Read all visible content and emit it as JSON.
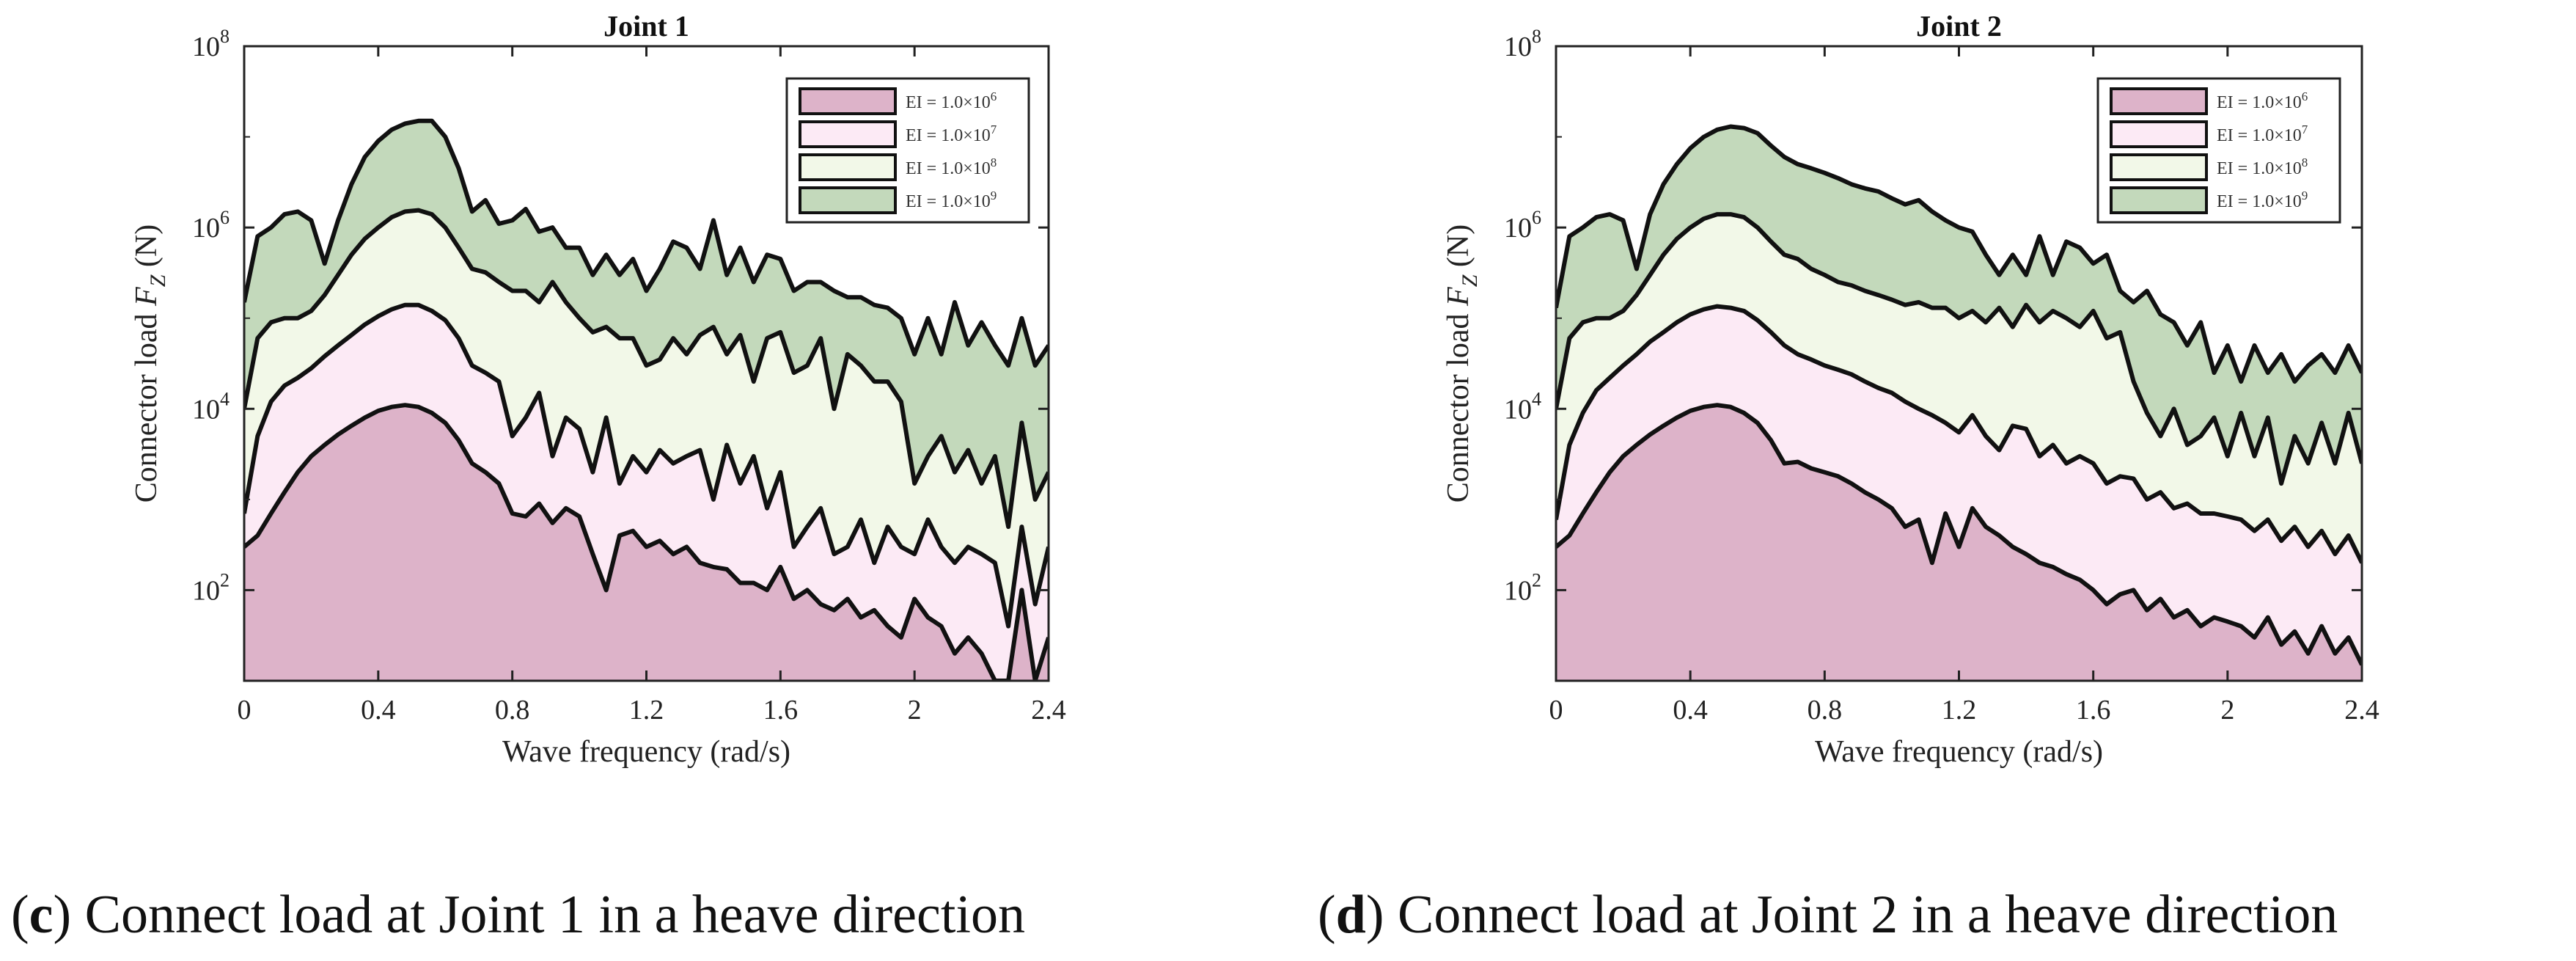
{
  "chart_data": [
    {
      "type": "area",
      "title": "Joint 1",
      "xlabel": "Wave frequency (rad/s)",
      "ylabel": "Connector load F_Z (N)",
      "ylabel_main": "Connector load ",
      "ylabel_var": "F",
      "ylabel_sub": "Z",
      "ylabel_unit": " (N)",
      "y_scale": "log",
      "ylim": [
        10,
        100000000
      ],
      "xlim": [
        0,
        2.4
      ],
      "x_ticks": [
        "0",
        "0.4",
        "0.8",
        "1.2",
        "1.6",
        "2",
        "2.4"
      ],
      "x_tick_values": [
        0,
        0.4,
        0.8,
        1.2,
        1.6,
        2,
        2.4
      ],
      "y_ticks": [
        {
          "value": 100,
          "base": "10",
          "exp": "2"
        },
        {
          "value": 10000,
          "base": "10",
          "exp": "4"
        },
        {
          "value": 1000000,
          "base": "10",
          "exp": "6"
        },
        {
          "value": 100000000,
          "base": "10",
          "exp": "8"
        }
      ],
      "legend_position": "top-right",
      "grid": false,
      "x": [
        0,
        0.04,
        0.08,
        0.12,
        0.16,
        0.2,
        0.24,
        0.28,
        0.32,
        0.36,
        0.4,
        0.44,
        0.48,
        0.52,
        0.56,
        0.6,
        0.64,
        0.68,
        0.72,
        0.76,
        0.8,
        0.84,
        0.88,
        0.92,
        0.96,
        1.0,
        1.04,
        1.08,
        1.12,
        1.16,
        1.2,
        1.24,
        1.28,
        1.32,
        1.36,
        1.4,
        1.44,
        1.48,
        1.52,
        1.56,
        1.6,
        1.64,
        1.68,
        1.72,
        1.76,
        1.8,
        1.84,
        1.88,
        1.92,
        1.96,
        2.0,
        2.04,
        2.08,
        2.12,
        2.16,
        2.2,
        2.24,
        2.28,
        2.32,
        2.36,
        2.4
      ],
      "series": [
        {
          "name": "EI = 1.0×10^6",
          "label_main": "EI = 1.0×10",
          "label_exp": "6",
          "color": "#ddb3c9",
          "values": [
            300,
            400,
            700,
            1200,
            2000,
            3000,
            4000,
            5200,
            6500,
            8000,
            9500,
            10500,
            11000,
            10500,
            9000,
            7000,
            4500,
            2500,
            2000,
            1500,
            700,
            650,
            900,
            550,
            800,
            650,
            250,
            100,
            400,
            450,
            300,
            350,
            250,
            300,
            200,
            180,
            170,
            120,
            120,
            100,
            180,
            80,
            100,
            70,
            60,
            80,
            50,
            60,
            40,
            30,
            80,
            50,
            40,
            20,
            30,
            20,
            10,
            6,
            100,
            8,
            30
          ]
        },
        {
          "name": "EI = 1.0×10^7",
          "label_main": "EI = 1.0×10",
          "label_exp": "7",
          "color": "#fceaf5",
          "values": [
            700,
            5000,
            12000,
            18000,
            22000,
            28000,
            38000,
            50000,
            65000,
            85000,
            105000,
            125000,
            140000,
            140000,
            120000,
            95000,
            60000,
            30000,
            25000,
            20000,
            5000,
            8000,
            15000,
            3000,
            8000,
            6000,
            2000,
            8000,
            1500,
            3000,
            2000,
            3500,
            2500,
            3000,
            3500,
            1000,
            4000,
            1500,
            3000,
            800,
            2000,
            300,
            500,
            800,
            250,
            300,
            600,
            200,
            500,
            300,
            250,
            600,
            300,
            200,
            300,
            250,
            200,
            40,
            500,
            70,
            300
          ]
        },
        {
          "name": "EI = 1.0×10^8",
          "label_main": "EI = 1.0×10",
          "label_exp": "8",
          "color": "#f2f8e8",
          "values": [
            10000,
            60000,
            90000,
            100000,
            100000,
            120000,
            180000,
            300000,
            500000,
            750000,
            1000000,
            1300000,
            1500000,
            1550000,
            1400000,
            1000000,
            600000,
            350000,
            320000,
            250000,
            200000,
            200000,
            150000,
            250000,
            150000,
            100000,
            70000,
            80000,
            60000,
            60000,
            30000,
            35000,
            60000,
            40000,
            65000,
            80000,
            40000,
            65000,
            20000,
            60000,
            70000,
            25000,
            30000,
            60000,
            10000,
            40000,
            30000,
            20000,
            20000,
            12000,
            1500,
            3000,
            5000,
            2000,
            3500,
            1500,
            3000,
            500,
            7000,
            1000,
            2000
          ]
        },
        {
          "name": "EI = 1.0×10^9",
          "label_main": "EI = 1.0×10",
          "label_exp": "9",
          "color": "#c3d9bb",
          "values": [
            150000,
            800000,
            1000000,
            1400000,
            1500000,
            1200000,
            400000,
            1200000,
            3000000,
            6000000,
            9000000,
            12000000,
            14000000,
            15000000,
            15000000,
            10000000,
            4500000,
            1500000,
            2000000,
            1100000,
            1200000,
            1600000,
            900000,
            1000000,
            600000,
            600000,
            300000,
            500000,
            300000,
            450000,
            200000,
            350000,
            700000,
            600000,
            350000,
            1200000,
            300000,
            600000,
            250000,
            500000,
            450000,
            200000,
            250000,
            250000,
            200000,
            170000,
            170000,
            140000,
            130000,
            100000,
            40000,
            100000,
            40000,
            150000,
            50000,
            90000,
            50000,
            30000,
            100000,
            30000,
            50000
          ]
        }
      ]
    },
    {
      "type": "area",
      "title": "Joint 2",
      "xlabel": "Wave frequency (rad/s)",
      "ylabel": "Connector load F_Z (N)",
      "ylabel_main": "Connector load ",
      "ylabel_var": "F",
      "ylabel_sub": "Z",
      "ylabel_unit": " (N)",
      "y_scale": "log",
      "ylim": [
        10,
        100000000
      ],
      "xlim": [
        0,
        2.4
      ],
      "x_ticks": [
        "0",
        "0.4",
        "0.8",
        "1.2",
        "1.6",
        "2",
        "2.4"
      ],
      "x_tick_values": [
        0,
        0.4,
        0.8,
        1.2,
        1.6,
        2,
        2.4
      ],
      "y_ticks": [
        {
          "value": 100,
          "base": "10",
          "exp": "2"
        },
        {
          "value": 10000,
          "base": "10",
          "exp": "4"
        },
        {
          "value": 1000000,
          "base": "10",
          "exp": "6"
        },
        {
          "value": 100000000,
          "base": "10",
          "exp": "8"
        }
      ],
      "legend_position": "top-right",
      "grid": false,
      "x": [
        0,
        0.04,
        0.08,
        0.12,
        0.16,
        0.2,
        0.24,
        0.28,
        0.32,
        0.36,
        0.4,
        0.44,
        0.48,
        0.52,
        0.56,
        0.6,
        0.64,
        0.68,
        0.72,
        0.76,
        0.8,
        0.84,
        0.88,
        0.92,
        0.96,
        1.0,
        1.04,
        1.08,
        1.12,
        1.16,
        1.2,
        1.24,
        1.28,
        1.32,
        1.36,
        1.4,
        1.44,
        1.48,
        1.52,
        1.56,
        1.6,
        1.64,
        1.68,
        1.72,
        1.76,
        1.8,
        1.84,
        1.88,
        1.92,
        1.96,
        2.0,
        2.04,
        2.08,
        2.12,
        2.16,
        2.2,
        2.24,
        2.28,
        2.32,
        2.36,
        2.4
      ],
      "series": [
        {
          "name": "EI = 1.0×10^6",
          "label_main": "EI = 1.0×10",
          "label_exp": "6",
          "color": "#ddb3c9",
          "values": [
            300,
            400,
            700,
            1200,
            2000,
            3000,
            4000,
            5200,
            6500,
            8000,
            9500,
            10500,
            11000,
            10500,
            9000,
            7000,
            4500,
            2500,
            2600,
            2200,
            2000,
            1800,
            1500,
            1200,
            1000,
            800,
            500,
            600,
            200,
            700,
            300,
            800,
            500,
            400,
            300,
            250,
            200,
            180,
            150,
            130,
            100,
            70,
            90,
            100,
            60,
            80,
            50,
            60,
            40,
            50,
            45,
            40,
            30,
            50,
            25,
            35,
            20,
            40,
            20,
            30,
            15
          ]
        },
        {
          "name": "EI = 1.0×10^7",
          "label_main": "EI = 1.0×10",
          "label_exp": "7",
          "color": "#fceaf5",
          "values": [
            600,
            4000,
            9000,
            16000,
            22000,
            30000,
            40000,
            55000,
            70000,
            90000,
            110000,
            125000,
            135000,
            130000,
            120000,
            95000,
            70000,
            50000,
            40000,
            35000,
            30000,
            27000,
            24000,
            20000,
            17000,
            15000,
            12000,
            10000,
            8500,
            7000,
            5500,
            8500,
            5000,
            3500,
            6500,
            6000,
            3000,
            4000,
            2500,
            3000,
            2500,
            1500,
            1800,
            1700,
            1000,
            1200,
            800,
            900,
            700,
            700,
            650,
            600,
            450,
            600,
            350,
            500,
            300,
            450,
            250,
            400,
            200
          ]
        },
        {
          "name": "EI = 1.0×10^8",
          "label_main": "EI = 1.0×10",
          "label_exp": "8",
          "color": "#f2f8e8",
          "values": [
            10000,
            60000,
            90000,
            100000,
            100000,
            120000,
            180000,
            300000,
            500000,
            750000,
            1000000,
            1250000,
            1400000,
            1400000,
            1300000,
            1000000,
            700000,
            500000,
            450000,
            350000,
            300000,
            250000,
            230000,
            200000,
            180000,
            160000,
            140000,
            150000,
            130000,
            130000,
            100000,
            120000,
            90000,
            130000,
            80000,
            140000,
            90000,
            120000,
            100000,
            80000,
            120000,
            60000,
            70000,
            20000,
            9000,
            5000,
            10000,
            4000,
            5000,
            8000,
            3000,
            9000,
            3000,
            8000,
            1500,
            5000,
            2500,
            7000,
            2500,
            9000,
            2500
          ]
        },
        {
          "name": "EI = 1.0×10^9",
          "label_main": "EI = 1.0×10",
          "label_exp": "9",
          "color": "#c3d9bb",
          "values": [
            130000,
            800000,
            1000000,
            1300000,
            1400000,
            1200000,
            350000,
            1400000,
            3000000,
            5000000,
            7500000,
            10000000,
            12000000,
            13000000,
            12500000,
            11000000,
            8000000,
            6000000,
            5000000,
            4500000,
            4000000,
            3500000,
            3000000,
            2700000,
            2500000,
            2100000,
            1800000,
            2000000,
            1500000,
            1200000,
            1000000,
            900000,
            500000,
            300000,
            500000,
            300000,
            800000,
            300000,
            700000,
            600000,
            400000,
            500000,
            200000,
            150000,
            200000,
            110000,
            90000,
            50000,
            90000,
            25000,
            50000,
            20000,
            50000,
            25000,
            40000,
            20000,
            30000,
            40000,
            25000,
            50000,
            25000
          ]
        }
      ]
    }
  ],
  "captions": [
    {
      "label": "c",
      "text": " Connect load at Joint 1 in a heave direction"
    },
    {
      "label": "d",
      "text": " Connect load at Joint 2 in a heave direction"
    }
  ]
}
